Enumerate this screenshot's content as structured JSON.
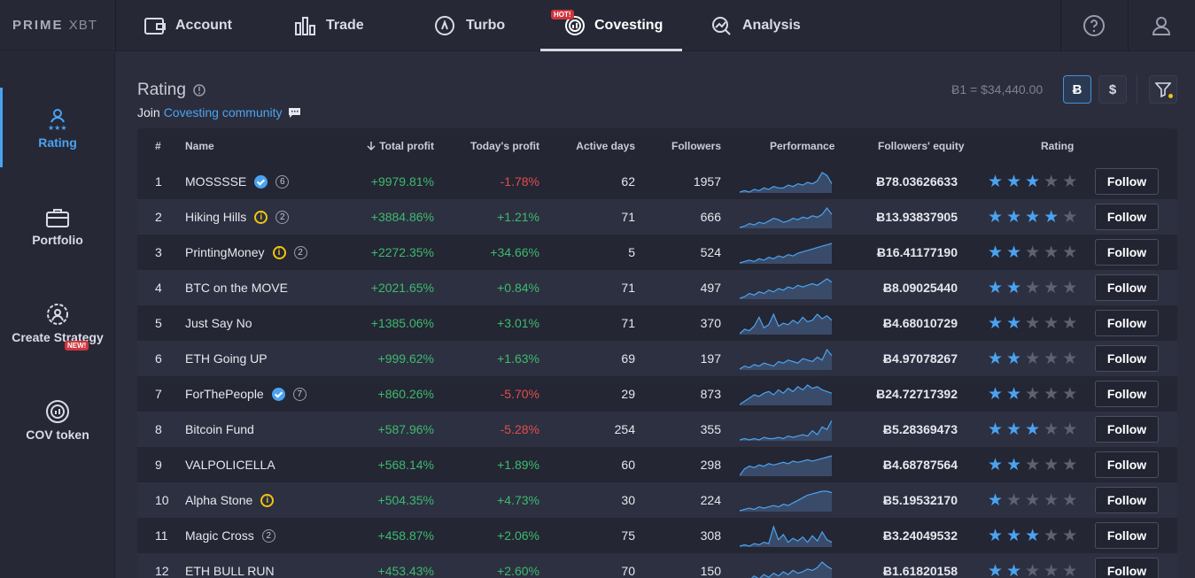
{
  "brand": {
    "logo_bold": "PRIME",
    "logo_thin": "XBT"
  },
  "topnav": {
    "items": [
      {
        "label": "Account"
      },
      {
        "label": "Trade"
      },
      {
        "label": "Turbo"
      },
      {
        "label": "Covesting",
        "badge": "HOT!"
      },
      {
        "label": "Analysis"
      }
    ],
    "active": "Covesting"
  },
  "sidebar": {
    "items": [
      {
        "label": "Rating"
      },
      {
        "label": "Portfolio"
      },
      {
        "label": "Create Strategy"
      },
      {
        "label": "COV token",
        "badge": "NEW!"
      }
    ],
    "active": "Rating"
  },
  "header": {
    "title": "Rating",
    "join_prefix": "Join",
    "join_link": "Covesting community",
    "rate": "Ƀ1 = $34,440.00",
    "currency_btc": "Ƀ",
    "currency_usd": "$"
  },
  "table": {
    "columns": [
      "#",
      "Name",
      "Total profit",
      "Today's profit",
      "Active days",
      "Followers",
      "Performance",
      "Followers' equity",
      "Rating"
    ],
    "follow_label": "Follow",
    "rows": [
      {
        "rank": "1",
        "name": "MOSSSSE",
        "verified": true,
        "info": false,
        "level": "6",
        "total": "+9979.81%",
        "today": "-1.78%",
        "days": "62",
        "followers": "1957",
        "equity": "Ƀ78.03626633",
        "rating": 3,
        "perf": [
          2,
          3,
          2,
          4,
          3,
          5,
          4,
          6,
          5,
          5,
          7,
          6,
          8,
          7,
          9,
          8,
          10,
          16,
          14,
          8
        ]
      },
      {
        "rank": "2",
        "name": "Hiking Hills",
        "verified": false,
        "info": true,
        "level": "2",
        "total": "+3884.86%",
        "today": "+1.21%",
        "days": "71",
        "followers": "666",
        "equity": "Ƀ13.93837905",
        "rating": 4,
        "perf": [
          2,
          3,
          5,
          4,
          6,
          5,
          7,
          9,
          8,
          6,
          7,
          9,
          8,
          10,
          9,
          11,
          10,
          12,
          17,
          12
        ]
      },
      {
        "rank": "3",
        "name": "PrintingMoney",
        "verified": false,
        "info": true,
        "level": "2",
        "total": "+2272.35%",
        "today": "+34.66%",
        "days": "5",
        "followers": "524",
        "equity": "Ƀ16.41177190",
        "rating": 2,
        "perf": [
          1,
          2,
          3,
          2,
          4,
          3,
          5,
          4,
          6,
          5,
          7,
          6,
          8,
          9,
          10,
          11,
          12,
          13,
          14,
          15
        ]
      },
      {
        "rank": "4",
        "name": "BTC on the MOVE",
        "verified": false,
        "info": false,
        "level": "",
        "total": "+2021.65%",
        "today": "+0.84%",
        "days": "71",
        "followers": "497",
        "equity": "Ƀ8.09025440",
        "rating": 2,
        "perf": [
          3,
          4,
          6,
          5,
          7,
          6,
          8,
          7,
          9,
          8,
          10,
          9,
          11,
          10,
          11,
          12,
          11,
          13,
          15,
          13
        ]
      },
      {
        "rank": "5",
        "name": "Just Say No",
        "verified": false,
        "info": false,
        "level": "",
        "total": "+1385.06%",
        "today": "+3.01%",
        "days": "71",
        "followers": "370",
        "equity": "Ƀ4.68010729",
        "rating": 2,
        "perf": [
          3,
          6,
          5,
          8,
          14,
          7,
          9,
          16,
          8,
          10,
          9,
          12,
          10,
          14,
          11,
          12,
          16,
          13,
          15,
          12
        ]
      },
      {
        "rank": "6",
        "name": "ETH Going UP",
        "verified": false,
        "info": false,
        "level": "",
        "total": "+999.62%",
        "today": "+1.63%",
        "days": "69",
        "followers": "197",
        "equity": "Ƀ4.97078267",
        "rating": 2,
        "perf": [
          3,
          5,
          4,
          6,
          5,
          7,
          6,
          5,
          8,
          7,
          9,
          8,
          7,
          10,
          9,
          8,
          11,
          9,
          16,
          12
        ]
      },
      {
        "rank": "7",
        "name": "ForThePeople",
        "verified": true,
        "info": false,
        "level": "7",
        "total": "+860.26%",
        "today": "-5.70%",
        "days": "29",
        "followers": "873",
        "equity": "Ƀ24.72717392",
        "rating": 2,
        "perf": [
          3,
          5,
          7,
          9,
          8,
          10,
          11,
          9,
          12,
          10,
          13,
          11,
          14,
          12,
          15,
          13,
          14,
          12,
          11,
          10
        ]
      },
      {
        "rank": "8",
        "name": "Bitcoin Fund",
        "verified": false,
        "info": false,
        "level": "",
        "total": "+587.96%",
        "today": "-5.28%",
        "days": "254",
        "followers": "355",
        "equity": "Ƀ5.28369473",
        "rating": 3,
        "perf": [
          2,
          3,
          2,
          3,
          2,
          4,
          3,
          3,
          4,
          3,
          5,
          4,
          5,
          6,
          5,
          9,
          6,
          12,
          10,
          17
        ]
      },
      {
        "rank": "9",
        "name": "VALPOLICELLA",
        "verified": false,
        "info": false,
        "level": "",
        "total": "+568.14%",
        "today": "+1.89%",
        "days": "60",
        "followers": "298",
        "equity": "Ƀ4.68787564",
        "rating": 2,
        "perf": [
          3,
          8,
          10,
          9,
          11,
          10,
          12,
          11,
          12,
          13,
          12,
          14,
          13,
          14,
          15,
          14,
          15,
          16,
          17,
          18
        ]
      },
      {
        "rank": "10",
        "name": "Alpha Stone",
        "verified": false,
        "info": true,
        "level": "",
        "total": "+504.35%",
        "today": "+4.73%",
        "days": "30",
        "followers": "224",
        "equity": "Ƀ5.19532170",
        "rating": 1,
        "perf": [
          2,
          3,
          4,
          3,
          5,
          4,
          5,
          6,
          5,
          7,
          6,
          8,
          10,
          12,
          14,
          15,
          16,
          17,
          17,
          16
        ]
      },
      {
        "rank": "11",
        "name": "Magic Cross",
        "verified": false,
        "info": false,
        "level": "2",
        "total": "+458.87%",
        "today": "+2.06%",
        "days": "75",
        "followers": "308",
        "equity": "Ƀ3.24049532",
        "rating": 3,
        "perf": [
          3,
          4,
          3,
          5,
          4,
          6,
          5,
          18,
          8,
          12,
          6,
          9,
          7,
          10,
          6,
          11,
          7,
          14,
          8,
          6
        ]
      },
      {
        "rank": "12",
        "name": "ETH BULL RUN",
        "verified": false,
        "info": false,
        "level": "",
        "total": "+453.43%",
        "today": "+2.60%",
        "days": "70",
        "followers": "150",
        "equity": "Ƀ1.61820158",
        "rating": 2,
        "perf": [
          3,
          5,
          4,
          7,
          5,
          8,
          6,
          9,
          7,
          10,
          8,
          11,
          9,
          10,
          12,
          11,
          13,
          17,
          14,
          12
        ]
      }
    ]
  }
}
